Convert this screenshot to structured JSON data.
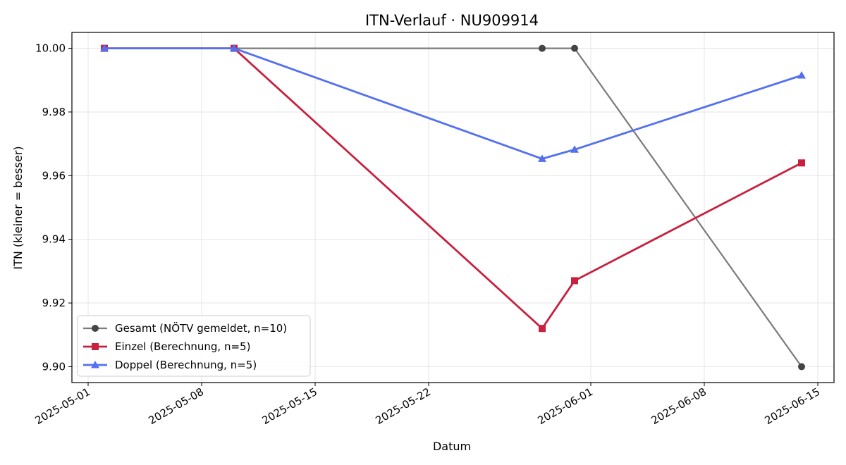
{
  "chart_data": {
    "type": "line",
    "title": "ITN-Verlauf · NU909914",
    "xlabel": "Datum",
    "ylabel": "ITN  (kleiner = besser)",
    "ylim": [
      9.895,
      10.005
    ],
    "xlim": [
      "2025-04-30",
      "2025-06-16"
    ],
    "x_ticks": [
      "2025-05-01",
      "2025-05-08",
      "2025-05-15",
      "2025-05-22",
      "2025-06-01",
      "2025-06-08",
      "2025-06-15"
    ],
    "y_ticks": [
      9.9,
      9.92,
      9.94,
      9.96,
      9.98,
      10.0
    ],
    "grid": true,
    "legend_position": "lower-left",
    "series": [
      {
        "name": "Gesamt (NÖTV gemeldet, n=10)",
        "color": "#7a7a7a",
        "marker": "circle",
        "marker_color": "#444444",
        "points": [
          {
            "x": "2025-05-02",
            "y": 10.0
          },
          {
            "x": "2025-05-10",
            "y": 10.0
          },
          {
            "x": "2025-05-29",
            "y": 10.0
          },
          {
            "x": "2025-05-31",
            "y": 10.0
          },
          {
            "x": "2025-06-14",
            "y": 9.9
          }
        ]
      },
      {
        "name": "Einzel (Berechnung, n=5)",
        "color": "#c8203f",
        "marker": "square",
        "marker_color": "#c8203f",
        "points": [
          {
            "x": "2025-05-02",
            "y": 10.0
          },
          {
            "x": "2025-05-10",
            "y": 10.0
          },
          {
            "x": "2025-05-29",
            "y": 9.912
          },
          {
            "x": "2025-05-31",
            "y": 9.927
          },
          {
            "x": "2025-06-14",
            "y": 9.964
          }
        ]
      },
      {
        "name": "Doppel (Berechnung, n=5)",
        "color": "#5470f0",
        "marker": "triangle",
        "marker_color": "#5470f0",
        "points": [
          {
            "x": "2025-05-02",
            "y": 10.0
          },
          {
            "x": "2025-05-10",
            "y": 10.0
          },
          {
            "x": "2025-05-29",
            "y": 9.9653
          },
          {
            "x": "2025-05-31",
            "y": 9.9682
          },
          {
            "x": "2025-06-14",
            "y": 9.9915
          }
        ]
      }
    ]
  }
}
